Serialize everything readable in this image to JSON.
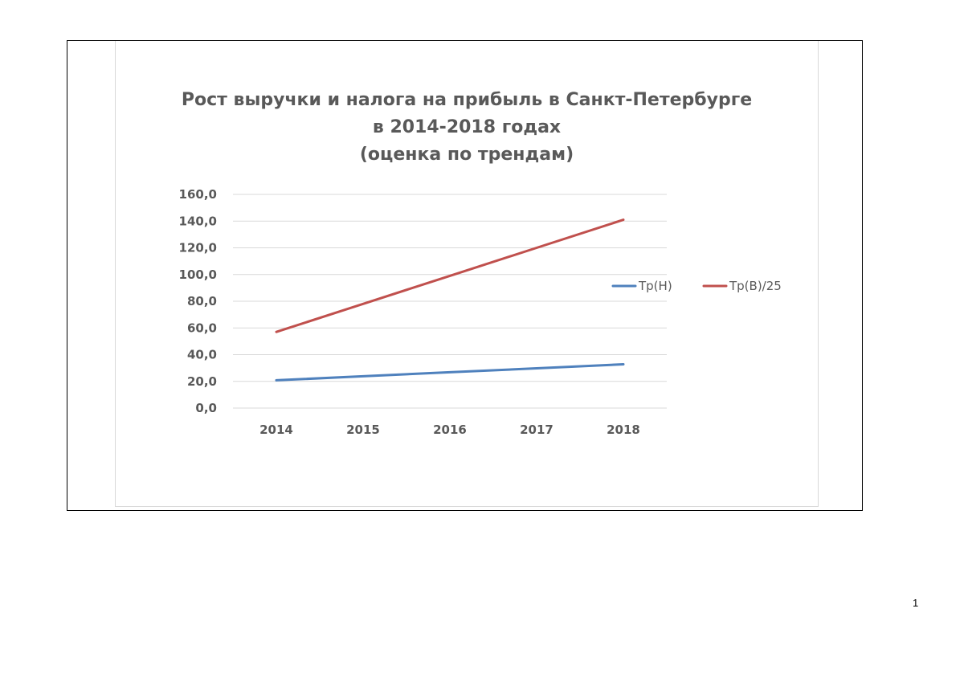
{
  "page": {
    "number": "1"
  },
  "chart_data": {
    "type": "line",
    "title_lines": [
      "Рост выручки и налога на прибыль в Санкт-Петербурге",
      "в 2014-2018 годах",
      "(оценка по трендам)"
    ],
    "xlabel": "",
    "ylabel": "",
    "categories": [
      "2014",
      "2015",
      "2016",
      "2017",
      "2018"
    ],
    "ylim": [
      0,
      160
    ],
    "yticks": [
      0,
      20,
      40,
      60,
      80,
      100,
      120,
      140,
      160
    ],
    "ytick_labels": [
      "0,0",
      "20,0",
      "40,0",
      "60,0",
      "80,0",
      "100,0",
      "120,0",
      "140,0",
      "160,0"
    ],
    "grid": true,
    "legend_position": "right",
    "series": [
      {
        "name": "Тр(Н)",
        "color": "#4f81bd",
        "values": [
          20.8,
          23.8,
          26.8,
          29.8,
          32.8
        ]
      },
      {
        "name": "Тр(В)/25",
        "color": "#c0504d",
        "values": [
          57.0,
          78.0,
          99.0,
          120.0,
          141.0
        ]
      }
    ]
  }
}
